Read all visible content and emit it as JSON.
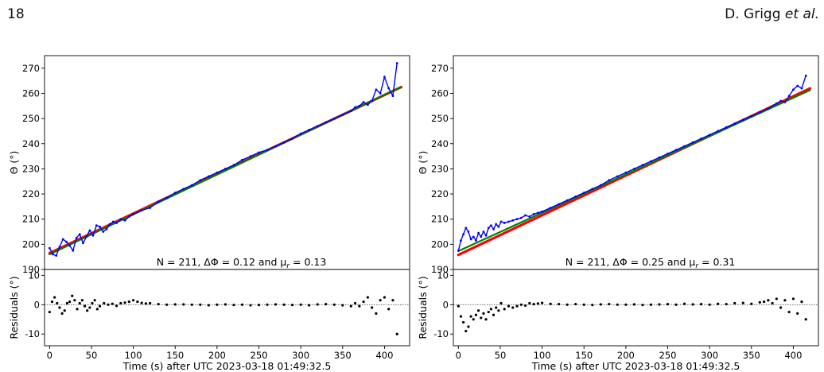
{
  "header": {
    "page_number": "18",
    "author": "D. Grigg",
    "et_al": "et al."
  },
  "colors": {
    "data_line": "#0000ff",
    "fit_red": "#ff0000",
    "fit_green": "#008000",
    "fit_olive": "#8c6a1f",
    "residual_points": "#000000"
  },
  "chart_data": [
    {
      "type": "line",
      "panel": "left",
      "ylabel_top": "Θ (°)",
      "ylabel_bottom": "Residuals (°)",
      "xlabel": "Time (s) after UTC 2023-03-18 01:49:32.5",
      "xlim": [
        -6,
        430
      ],
      "ylim_top": [
        190,
        275
      ],
      "ylim_bottom": [
        -14,
        12
      ],
      "xticks": [
        0,
        50,
        100,
        150,
        200,
        250,
        300,
        350,
        400
      ],
      "yticks_top": [
        190,
        200,
        210,
        220,
        230,
        240,
        250,
        260,
        270
      ],
      "yticks_bottom": [
        -10,
        0,
        10
      ],
      "annotation_pre": "N = 211, ΔΦ = 0.12 and μ",
      "annotation_sub": "r",
      "annotation_post": " = 0.13",
      "fit_lines": [
        {
          "color": "red",
          "x": [
            0,
            420
          ],
          "y": [
            196.5,
            262.5
          ]
        },
        {
          "color": "green",
          "x": [
            0,
            420
          ],
          "y": [
            196.0,
            262.6
          ]
        }
      ],
      "series_measured": {
        "x": [
          0,
          4,
          8,
          12,
          16,
          20,
          24,
          28,
          32,
          36,
          40,
          44,
          48,
          52,
          56,
          60,
          64,
          68,
          72,
          76,
          80,
          85,
          90,
          95,
          100,
          110,
          120,
          130,
          140,
          150,
          160,
          170,
          180,
          190,
          200,
          210,
          220,
          230,
          240,
          250,
          260,
          270,
          280,
          290,
          300,
          310,
          320,
          330,
          340,
          350,
          360,
          365,
          370,
          375,
          380,
          385,
          390,
          395,
          400,
          405,
          410,
          415
        ],
        "y": [
          198.5,
          196.0,
          195.5,
          199.0,
          202.0,
          201.0,
          199.5,
          197.5,
          202.5,
          204.0,
          200.5,
          203.0,
          205.5,
          203.5,
          207.5,
          207.0,
          205.0,
          206.0,
          208.0,
          209.0,
          208.5,
          210.0,
          209.5,
          211.0,
          212.0,
          213.5,
          214.5,
          217.0,
          218.5,
          220.5,
          222.0,
          223.5,
          225.5,
          227.0,
          228.5,
          230.0,
          231.5,
          233.5,
          235.0,
          236.5,
          237.5,
          239.0,
          240.5,
          242.0,
          244.0,
          245.5,
          247.0,
          248.5,
          250.0,
          251.5,
          253.0,
          254.5,
          255.0,
          256.5,
          255.5,
          257.0,
          261.5,
          260.0,
          266.5,
          262.0,
          259.0,
          272.0
        ]
      },
      "residuals": {
        "x": [
          0,
          3,
          6,
          9,
          12,
          15,
          18,
          21,
          24,
          27,
          30,
          33,
          36,
          39,
          42,
          45,
          48,
          51,
          54,
          57,
          60,
          65,
          70,
          75,
          80,
          85,
          90,
          95,
          100,
          105,
          110,
          115,
          120,
          130,
          140,
          150,
          160,
          170,
          180,
          190,
          200,
          210,
          220,
          230,
          240,
          250,
          260,
          270,
          280,
          290,
          300,
          310,
          320,
          330,
          340,
          350,
          360,
          365,
          370,
          375,
          380,
          385,
          390,
          395,
          400,
          405,
          410,
          415
        ],
        "y": [
          -2.5,
          1.0,
          2.5,
          0.5,
          -1.0,
          -3.0,
          -2.0,
          0.5,
          1.0,
          3.0,
          1.5,
          -1.5,
          0.5,
          1.5,
          -0.5,
          -2.0,
          -1.0,
          0.5,
          1.5,
          -1.5,
          -0.5,
          0.5,
          0.0,
          0.3,
          -0.4,
          0.5,
          0.7,
          1.0,
          1.5,
          1.0,
          0.6,
          0.4,
          0.5,
          0.2,
          0.0,
          0.1,
          0.1,
          0.0,
          0.0,
          -0.2,
          0.0,
          0.1,
          -0.1,
          0.0,
          -0.2,
          -0.1,
          0.0,
          0.1,
          0.0,
          -0.1,
          0.0,
          -0.2,
          0.1,
          0.2,
          0.0,
          -0.2,
          -0.5,
          0.5,
          -0.5,
          1.0,
          2.5,
          -1.0,
          -3.0,
          1.5,
          2.5,
          -1.5,
          1.5,
          -10.0
        ]
      }
    },
    {
      "type": "line",
      "panel": "right",
      "ylabel_top": "Θ (°)",
      "ylabel_bottom": "Residuals (°)",
      "xlabel": "Time (s) after UTC 2023-03-18 01:49:32.5",
      "xlim": [
        -6,
        430
      ],
      "ylim_top": [
        190,
        275
      ],
      "ylim_bottom": [
        -14,
        12
      ],
      "xticks": [
        0,
        50,
        100,
        150,
        200,
        250,
        300,
        350,
        400
      ],
      "yticks_top": [
        190,
        200,
        210,
        220,
        230,
        240,
        250,
        260,
        270
      ],
      "yticks_bottom": [
        -10,
        0,
        10
      ],
      "annotation_pre": "N = 211, ΔΦ = 0.25 and μ",
      "annotation_sub": "r",
      "annotation_post": " = 0.31",
      "fit_lines": [
        {
          "color": "red",
          "x": [
            0,
            420
          ],
          "y": [
            195.8,
            262.0
          ]
        },
        {
          "color": "green",
          "x": [
            0,
            420
          ],
          "y": [
            197.3,
            261.3
          ]
        }
      ],
      "series_measured": {
        "x": [
          0,
          3,
          6,
          9,
          12,
          15,
          18,
          21,
          24,
          27,
          30,
          33,
          36,
          39,
          42,
          45,
          48,
          51,
          55,
          60,
          65,
          70,
          75,
          80,
          85,
          90,
          95,
          100,
          110,
          120,
          130,
          140,
          150,
          160,
          170,
          180,
          190,
          200,
          210,
          220,
          230,
          240,
          250,
          260,
          270,
          280,
          290,
          300,
          310,
          320,
          330,
          340,
          350,
          360,
          370,
          380,
          385,
          390,
          395,
          400,
          405,
          410,
          415
        ],
        "y": [
          197.5,
          201.5,
          204.0,
          206.5,
          205.0,
          202.0,
          203.0,
          201.5,
          204.5,
          203.0,
          205.0,
          203.5,
          206.5,
          207.5,
          206.0,
          208.0,
          207.0,
          209.0,
          208.5,
          209.0,
          209.5,
          210.0,
          210.5,
          211.5,
          211.0,
          212.0,
          212.5,
          213.0,
          214.5,
          216.0,
          217.5,
          219.0,
          220.5,
          222.0,
          223.5,
          225.5,
          227.0,
          228.5,
          230.0,
          231.5,
          233.0,
          234.5,
          236.0,
          237.5,
          239.0,
          240.5,
          242.0,
          243.5,
          245.0,
          246.5,
          248.0,
          249.5,
          251.0,
          252.5,
          254.0,
          256.0,
          257.0,
          256.5,
          259.0,
          261.5,
          263.0,
          262.0,
          267.0
        ]
      },
      "residuals": {
        "x": [
          0,
          3,
          6,
          9,
          12,
          15,
          18,
          21,
          24,
          27,
          30,
          33,
          36,
          39,
          42,
          45,
          48,
          51,
          55,
          60,
          65,
          70,
          75,
          80,
          85,
          90,
          95,
          100,
          110,
          120,
          130,
          140,
          150,
          160,
          170,
          180,
          190,
          200,
          210,
          220,
          230,
          240,
          250,
          260,
          270,
          280,
          290,
          300,
          310,
          320,
          330,
          340,
          350,
          360,
          365,
          370,
          375,
          380,
          385,
          390,
          395,
          400,
          405,
          410,
          415
        ],
        "y": [
          -0.5,
          -4.0,
          -6.0,
          -9.0,
          -7.5,
          -4.0,
          -5.0,
          -3.5,
          -2.0,
          -4.5,
          -3.0,
          -5.0,
          -2.5,
          -1.5,
          -3.5,
          -1.0,
          -2.0,
          0.5,
          -1.5,
          -0.5,
          -1.0,
          -0.5,
          0.0,
          -0.3,
          0.5,
          0.2,
          0.4,
          0.6,
          0.3,
          0.2,
          0.0,
          0.2,
          0.0,
          -0.1,
          0.1,
          0.2,
          0.0,
          0.0,
          0.1,
          -0.1,
          0.0,
          0.1,
          0.2,
          0.0,
          0.3,
          0.1,
          0.2,
          0.0,
          0.3,
          0.2,
          0.5,
          0.6,
          0.3,
          0.8,
          1.0,
          1.5,
          0.5,
          2.0,
          -1.0,
          1.5,
          -2.5,
          2.0,
          -3.0,
          1.0,
          -5.0
        ]
      }
    }
  ]
}
